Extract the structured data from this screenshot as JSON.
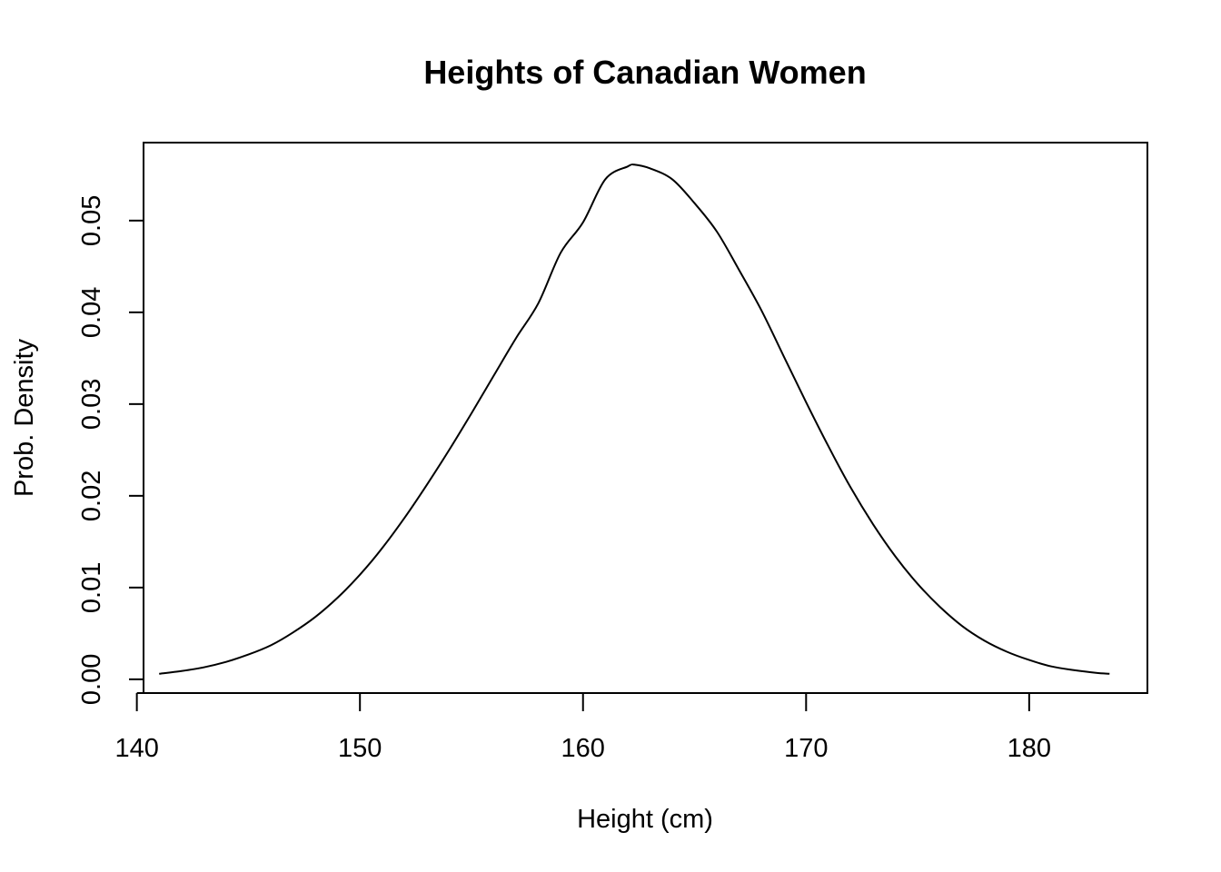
{
  "chart_data": {
    "type": "line",
    "title": "Heights of Canadian Women",
    "xlabel": "Height (cm)",
    "ylabel": "Prob. Density",
    "xlim": [
      140.3,
      185.3
    ],
    "ylim": [
      -0.0015,
      0.0585
    ],
    "x_ticks": [
      140,
      150,
      160,
      170,
      180
    ],
    "x_tick_labels": [
      "140",
      "150",
      "160",
      "170",
      "180"
    ],
    "y_ticks": [
      0.0,
      0.01,
      0.02,
      0.03,
      0.04,
      0.05
    ],
    "y_tick_labels": [
      "0.00",
      "0.01",
      "0.02",
      "0.03",
      "0.04",
      "0.05"
    ],
    "grid": false,
    "series": [
      {
        "color": "#000000",
        "x": [
          141.0,
          142.0,
          143.0,
          144.0,
          145.0,
          146.0,
          147.0,
          148.0,
          149.0,
          150.0,
          151.0,
          152.0,
          153.0,
          154.0,
          155.0,
          156.0,
          157.0,
          158.0,
          159.0,
          160.0,
          161.0,
          162.0,
          162.3,
          163.0,
          164.0,
          165.0,
          166.0,
          167.0,
          168.0,
          169.0,
          170.0,
          171.0,
          172.0,
          173.0,
          174.0,
          175.0,
          176.0,
          177.0,
          178.0,
          179.0,
          180.0,
          181.0,
          182.0,
          183.0,
          183.6
        ],
        "y": [
          0.0006,
          0.0009,
          0.0013,
          0.0019,
          0.0027,
          0.0037,
          0.0051,
          0.0068,
          0.0089,
          0.0114,
          0.0143,
          0.0176,
          0.0212,
          0.025,
          0.029,
          0.0331,
          0.0372,
          0.041,
          0.0465,
          0.0498,
          0.0545,
          0.0559,
          0.0561,
          0.0557,
          0.0545,
          0.0519,
          0.0488,
          0.0446,
          0.0402,
          0.0352,
          0.0302,
          0.0254,
          0.0209,
          0.0169,
          0.0134,
          0.0104,
          0.0079,
          0.0058,
          0.0042,
          0.003,
          0.0021,
          0.0014,
          0.001,
          0.0007,
          0.0006
        ]
      }
    ]
  }
}
